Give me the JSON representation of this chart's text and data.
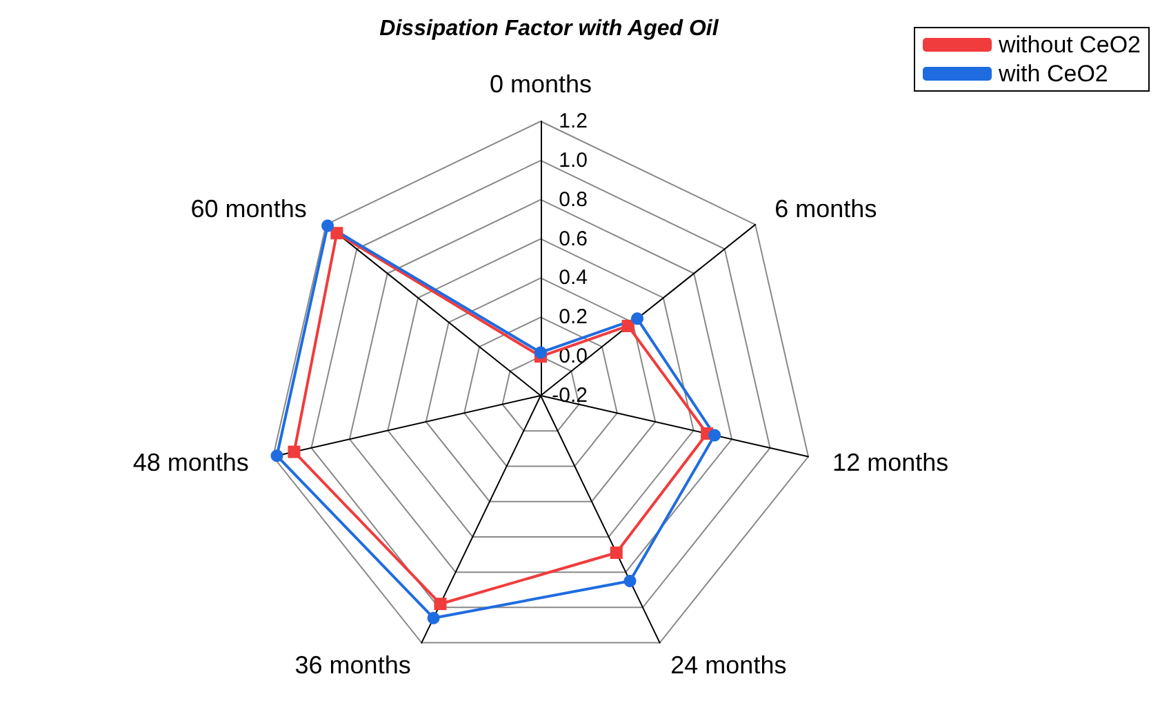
{
  "chart_data": {
    "type": "radar",
    "title": "Dissipation Factor with Aged Oil",
    "categories": [
      "0 months",
      "6 months",
      "12 months",
      "24 months",
      "36 months",
      "48 months",
      "60 months"
    ],
    "series": [
      {
        "name": "without CeO2",
        "color": "#f03c3c",
        "marker": "square",
        "values": [
          0.0,
          0.37,
          0.67,
          0.69,
          0.98,
          1.09,
          1.13
        ]
      },
      {
        "name": "with CeO2",
        "color": "#1f6ce0",
        "marker": "circle",
        "values": [
          0.02,
          0.43,
          0.71,
          0.85,
          1.06,
          1.18,
          1.19
        ]
      }
    ],
    "ylim": [
      -0.2,
      1.2
    ],
    "yticks": [
      -0.2,
      {
        "value": 0,
        "label": "0.0"
      },
      0.2,
      0.4,
      0.6,
      0.8,
      {
        "value": 1,
        "label": "1.0"
      },
      1.2
    ],
    "legend": "top right"
  }
}
